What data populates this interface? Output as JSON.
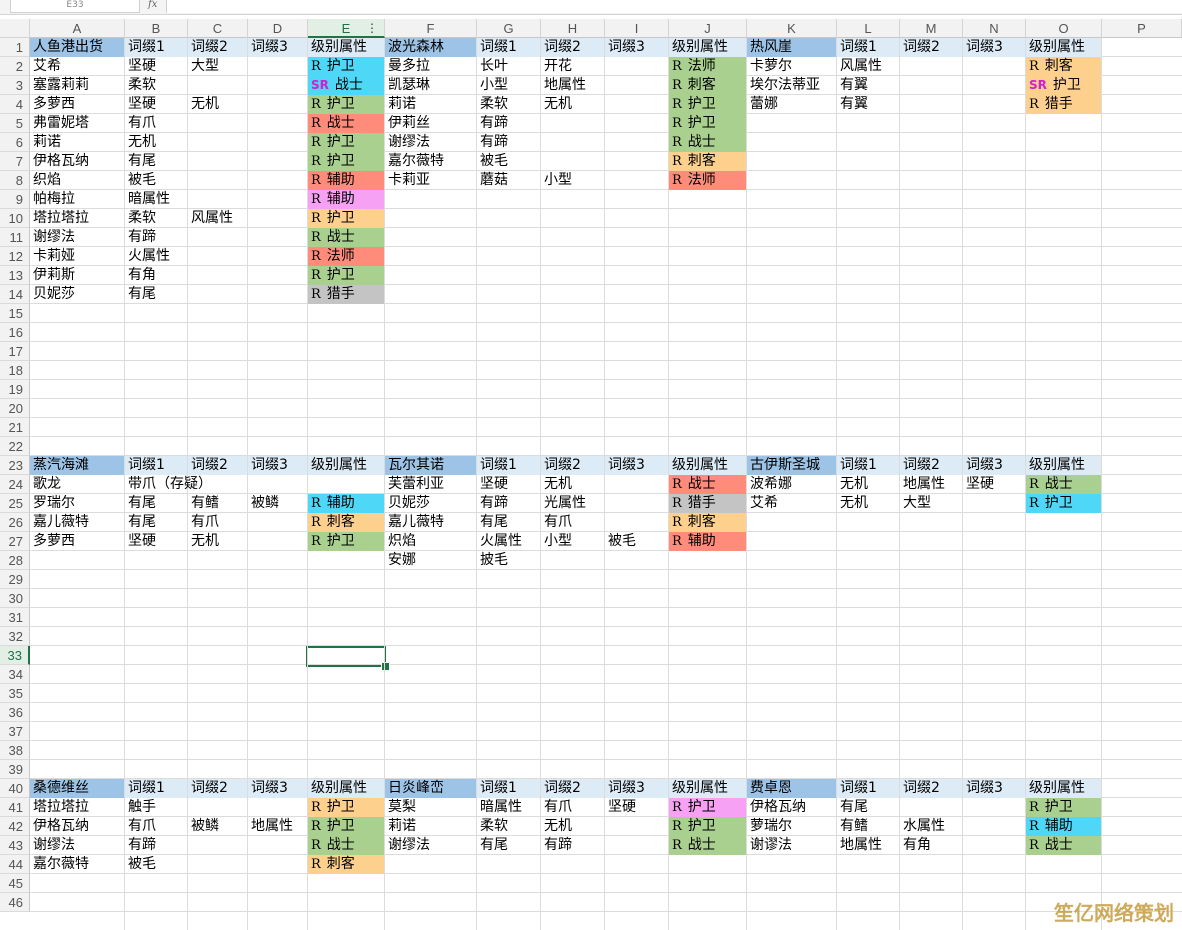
{
  "formula_bar": {
    "cell_ref": "E33",
    "fx_label": "fx"
  },
  "columns": [
    "A",
    "B",
    "C",
    "D",
    "E",
    "F",
    "G",
    "H",
    "I",
    "J",
    "K",
    "L",
    "M",
    "N",
    "O",
    "P"
  ],
  "selected_column": "E",
  "selected_row": "33",
  "rows": [
    "1",
    "2",
    "3",
    "4",
    "5",
    "6",
    "7",
    "8",
    "9",
    "10",
    "11",
    "12",
    "13",
    "14",
    "15",
    "16",
    "17",
    "18",
    "19",
    "20",
    "21",
    "22",
    "23",
    "24",
    "25",
    "26",
    "27",
    "28",
    "29",
    "30",
    "31",
    "32",
    "33",
    "34",
    "35",
    "36",
    "37",
    "38",
    "39",
    "40",
    "41",
    "42",
    "43",
    "44",
    "45",
    "46"
  ],
  "colors": {
    "header_blue": "#9dc3e6",
    "header_lightblue": "#ddebf7",
    "cyan": "#4fd7f7",
    "green": "#a9d08e",
    "red": "#ff8c7a",
    "pink": "#f7a1f4",
    "orange": "#fdd08e",
    "gray": "#c4c4c4",
    "selection_green": "#217346"
  },
  "cells": [
    {
      "c": "A",
      "r": 1,
      "t": "人鱼港出货",
      "bg": "header_blue"
    },
    {
      "c": "B",
      "r": 1,
      "t": "词缀1",
      "bg": "header_lightblue"
    },
    {
      "c": "C",
      "r": 1,
      "t": "词缀2",
      "bg": "header_lightblue"
    },
    {
      "c": "D",
      "r": 1,
      "t": "词缀3",
      "bg": "header_lightblue"
    },
    {
      "c": "E",
      "r": 1,
      "t": "级别属性",
      "bg": "header_lightblue"
    },
    {
      "c": "F",
      "r": 1,
      "t": "波光森林",
      "bg": "header_blue"
    },
    {
      "c": "G",
      "r": 1,
      "t": "词缀1",
      "bg": "header_lightblue"
    },
    {
      "c": "H",
      "r": 1,
      "t": "词缀2",
      "bg": "header_lightblue"
    },
    {
      "c": "I",
      "r": 1,
      "t": "词缀3",
      "bg": "header_lightblue"
    },
    {
      "c": "J",
      "r": 1,
      "t": "级别属性",
      "bg": "header_lightblue"
    },
    {
      "c": "K",
      "r": 1,
      "t": "热风崖",
      "bg": "header_blue"
    },
    {
      "c": "L",
      "r": 1,
      "t": "词缀1",
      "bg": "header_lightblue"
    },
    {
      "c": "M",
      "r": 1,
      "t": "词缀2",
      "bg": "header_lightblue"
    },
    {
      "c": "N",
      "r": 1,
      "t": "词缀3",
      "bg": "header_lightblue"
    },
    {
      "c": "O",
      "r": 1,
      "t": "级别属性",
      "bg": "header_lightblue"
    },
    {
      "c": "A",
      "r": 2,
      "t": "艾希"
    },
    {
      "c": "B",
      "r": 2,
      "t": "坚硬"
    },
    {
      "c": "C",
      "r": 2,
      "t": "大型"
    },
    {
      "c": "E",
      "r": 2,
      "rk": "R",
      "t": "护卫",
      "bg": "cyan"
    },
    {
      "c": "F",
      "r": 2,
      "t": "曼多拉"
    },
    {
      "c": "G",
      "r": 2,
      "t": "长叶"
    },
    {
      "c": "H",
      "r": 2,
      "t": "开花"
    },
    {
      "c": "J",
      "r": 2,
      "rk": "R",
      "t": "法师",
      "bg": "green"
    },
    {
      "c": "K",
      "r": 2,
      "t": "卡萝尔"
    },
    {
      "c": "L",
      "r": 2,
      "t": "风属性"
    },
    {
      "c": "O",
      "r": 2,
      "rk": "R",
      "t": "刺客",
      "bg": "orange"
    },
    {
      "c": "A",
      "r": 3,
      "t": "塞露莉莉"
    },
    {
      "c": "B",
      "r": 3,
      "t": "柔软"
    },
    {
      "c": "E",
      "r": 3,
      "rk": "SR",
      "t": "战士",
      "bg": "cyan"
    },
    {
      "c": "F",
      "r": 3,
      "t": "凯瑟琳"
    },
    {
      "c": "G",
      "r": 3,
      "t": "小型"
    },
    {
      "c": "H",
      "r": 3,
      "t": "地属性"
    },
    {
      "c": "J",
      "r": 3,
      "rk": "R",
      "t": "刺客",
      "bg": "green"
    },
    {
      "c": "K",
      "r": 3,
      "t": "埃尔法蒂亚"
    },
    {
      "c": "L",
      "r": 3,
      "t": "有翼"
    },
    {
      "c": "O",
      "r": 3,
      "rk": "SR",
      "t": "护卫",
      "bg": "orange"
    },
    {
      "c": "A",
      "r": 4,
      "t": "多萝西"
    },
    {
      "c": "B",
      "r": 4,
      "t": "坚硬"
    },
    {
      "c": "C",
      "r": 4,
      "t": "无机"
    },
    {
      "c": "E",
      "r": 4,
      "rk": "R",
      "t": "护卫",
      "bg": "green"
    },
    {
      "c": "F",
      "r": 4,
      "t": "莉诺"
    },
    {
      "c": "G",
      "r": 4,
      "t": "柔软"
    },
    {
      "c": "H",
      "r": 4,
      "t": "无机"
    },
    {
      "c": "J",
      "r": 4,
      "rk": "R",
      "t": "护卫",
      "bg": "green"
    },
    {
      "c": "K",
      "r": 4,
      "t": "蕾娜"
    },
    {
      "c": "L",
      "r": 4,
      "t": "有翼"
    },
    {
      "c": "O",
      "r": 4,
      "rk": "R",
      "t": "猎手",
      "bg": "orange"
    },
    {
      "c": "A",
      "r": 5,
      "t": "弗雷妮塔"
    },
    {
      "c": "B",
      "r": 5,
      "t": "有爪"
    },
    {
      "c": "E",
      "r": 5,
      "rk": "R",
      "t": "战士",
      "bg": "red"
    },
    {
      "c": "F",
      "r": 5,
      "t": "伊莉丝"
    },
    {
      "c": "G",
      "r": 5,
      "t": "有蹄"
    },
    {
      "c": "J",
      "r": 5,
      "rk": "R",
      "t": "护卫",
      "bg": "green"
    },
    {
      "c": "A",
      "r": 6,
      "t": "莉诺"
    },
    {
      "c": "B",
      "r": 6,
      "t": "无机"
    },
    {
      "c": "E",
      "r": 6,
      "rk": "R",
      "t": "护卫",
      "bg": "green"
    },
    {
      "c": "F",
      "r": 6,
      "t": "谢缪法"
    },
    {
      "c": "G",
      "r": 6,
      "t": "有蹄"
    },
    {
      "c": "J",
      "r": 6,
      "rk": "R",
      "t": "战士",
      "bg": "green"
    },
    {
      "c": "A",
      "r": 7,
      "t": "伊格瓦纳"
    },
    {
      "c": "B",
      "r": 7,
      "t": "有尾"
    },
    {
      "c": "E",
      "r": 7,
      "rk": "R",
      "t": "护卫",
      "bg": "green"
    },
    {
      "c": "F",
      "r": 7,
      "t": "嘉尔薇特"
    },
    {
      "c": "G",
      "r": 7,
      "t": "被毛"
    },
    {
      "c": "J",
      "r": 7,
      "rk": "R",
      "t": "刺客",
      "bg": "orange"
    },
    {
      "c": "A",
      "r": 8,
      "t": "织焰"
    },
    {
      "c": "B",
      "r": 8,
      "t": "被毛"
    },
    {
      "c": "E",
      "r": 8,
      "rk": "R",
      "t": "辅助",
      "bg": "red"
    },
    {
      "c": "F",
      "r": 8,
      "t": "卡莉亚"
    },
    {
      "c": "G",
      "r": 8,
      "t": "蘑菇"
    },
    {
      "c": "H",
      "r": 8,
      "t": "小型"
    },
    {
      "c": "J",
      "r": 8,
      "rk": "R",
      "t": "法师",
      "bg": "red"
    },
    {
      "c": "A",
      "r": 9,
      "t": "帕梅拉"
    },
    {
      "c": "B",
      "r": 9,
      "t": "暗属性"
    },
    {
      "c": "E",
      "r": 9,
      "rk": "R",
      "t": "辅助",
      "bg": "pink"
    },
    {
      "c": "A",
      "r": 10,
      "t": "塔拉塔拉"
    },
    {
      "c": "B",
      "r": 10,
      "t": "  柔软"
    },
    {
      "c": "C",
      "r": 10,
      "t": "风属性"
    },
    {
      "c": "E",
      "r": 10,
      "rk": "R",
      "t": "护卫",
      "bg": "orange"
    },
    {
      "c": "A",
      "r": 11,
      "t": "谢缪法"
    },
    {
      "c": "B",
      "r": 11,
      "t": "有蹄"
    },
    {
      "c": "E",
      "r": 11,
      "rk": "R",
      "t": "战士",
      "bg": "green"
    },
    {
      "c": "A",
      "r": 12,
      "t": "卡莉娅"
    },
    {
      "c": "B",
      "r": 12,
      "t": "火属性"
    },
    {
      "c": "E",
      "r": 12,
      "rk": "R",
      "t": "法师",
      "bg": "red"
    },
    {
      "c": "A",
      "r": 13,
      "t": "伊莉斯"
    },
    {
      "c": "B",
      "r": 13,
      "t": "有角"
    },
    {
      "c": "E",
      "r": 13,
      "rk": "R",
      "t": "护卫",
      "bg": "green"
    },
    {
      "c": "A",
      "r": 14,
      "t": "贝妮莎"
    },
    {
      "c": "B",
      "r": 14,
      "t": "有尾"
    },
    {
      "c": "E",
      "r": 14,
      "rk": "R",
      "t": "猎手",
      "bg": "gray"
    },
    {
      "c": "A",
      "r": 23,
      "t": "蒸汽海滩",
      "bg": "header_blue"
    },
    {
      "c": "B",
      "r": 23,
      "t": "词缀1",
      "bg": "header_lightblue"
    },
    {
      "c": "C",
      "r": 23,
      "t": "词缀2",
      "bg": "header_lightblue"
    },
    {
      "c": "D",
      "r": 23,
      "t": "词缀3",
      "bg": "header_lightblue"
    },
    {
      "c": "E",
      "r": 23,
      "t": "级别属性",
      "bg": "header_lightblue"
    },
    {
      "c": "F",
      "r": 23,
      "t": "瓦尔其诺",
      "bg": "header_blue"
    },
    {
      "c": "G",
      "r": 23,
      "t": "词缀1",
      "bg": "header_lightblue"
    },
    {
      "c": "H",
      "r": 23,
      "t": "词缀2",
      "bg": "header_lightblue"
    },
    {
      "c": "I",
      "r": 23,
      "t": "词缀3",
      "bg": "header_lightblue"
    },
    {
      "c": "J",
      "r": 23,
      "t": "级别属性",
      "bg": "header_lightblue"
    },
    {
      "c": "K",
      "r": 23,
      "t": "古伊斯圣城",
      "bg": "header_blue"
    },
    {
      "c": "L",
      "r": 23,
      "t": "词缀1",
      "bg": "header_lightblue"
    },
    {
      "c": "M",
      "r": 23,
      "t": "词缀2",
      "bg": "header_lightblue"
    },
    {
      "c": "N",
      "r": 23,
      "t": "词缀3",
      "bg": "header_lightblue"
    },
    {
      "c": "O",
      "r": 23,
      "t": "级别属性",
      "bg": "header_lightblue"
    },
    {
      "c": "A",
      "r": 24,
      "t": "歌龙"
    },
    {
      "c": "B",
      "r": 24,
      "t": "带爪（存疑）"
    },
    {
      "c": "F",
      "r": 24,
      "t": "芙蕾利亚"
    },
    {
      "c": "G",
      "r": 24,
      "t": "坚硬"
    },
    {
      "c": "H",
      "r": 24,
      "t": "无机"
    },
    {
      "c": "J",
      "r": 24,
      "rk": "R",
      "t": "战士",
      "bg": "red"
    },
    {
      "c": "K",
      "r": 24,
      "t": "波希娜"
    },
    {
      "c": "L",
      "r": 24,
      "t": "无机"
    },
    {
      "c": "M",
      "r": 24,
      "t": "地属性"
    },
    {
      "c": "N",
      "r": 24,
      "t": "坚硬"
    },
    {
      "c": "O",
      "r": 24,
      "rk": "R",
      "t": "战士",
      "bg": "green"
    },
    {
      "c": "A",
      "r": 25,
      "t": "罗瑞尔"
    },
    {
      "c": "B",
      "r": 25,
      "t": "有尾"
    },
    {
      "c": "C",
      "r": 25,
      "t": "有鳍"
    },
    {
      "c": "D",
      "r": 25,
      "t": "被鳞"
    },
    {
      "c": "E",
      "r": 25,
      "rk": "R",
      "t": "辅助",
      "bg": "cyan"
    },
    {
      "c": "F",
      "r": 25,
      "t": "贝妮莎"
    },
    {
      "c": "G",
      "r": 25,
      "t": "有蹄"
    },
    {
      "c": "H",
      "r": 25,
      "t": "光属性"
    },
    {
      "c": "J",
      "r": 25,
      "rk": "R",
      "t": "猎手",
      "bg": "gray"
    },
    {
      "c": "K",
      "r": 25,
      "t": "艾希"
    },
    {
      "c": "L",
      "r": 25,
      "t": "无机"
    },
    {
      "c": "M",
      "r": 25,
      "t": "大型"
    },
    {
      "c": "O",
      "r": 25,
      "rk": "R",
      "t": "护卫",
      "bg": "cyan"
    },
    {
      "c": "A",
      "r": 26,
      "t": "嘉儿薇特"
    },
    {
      "c": "B",
      "r": 26,
      "t": "有尾"
    },
    {
      "c": "C",
      "r": 26,
      "t": "有爪"
    },
    {
      "c": "E",
      "r": 26,
      "rk": "R",
      "t": "刺客",
      "bg": "orange"
    },
    {
      "c": "F",
      "r": 26,
      "t": "嘉儿薇特"
    },
    {
      "c": "G",
      "r": 26,
      "t": "有尾"
    },
    {
      "c": "H",
      "r": 26,
      "t": "有爪"
    },
    {
      "c": "J",
      "r": 26,
      "rk": "R",
      "t": "刺客",
      "bg": "orange"
    },
    {
      "c": "A",
      "r": 27,
      "t": "多萝西"
    },
    {
      "c": "B",
      "r": 27,
      "t": "坚硬"
    },
    {
      "c": "C",
      "r": 27,
      "t": "无机"
    },
    {
      "c": "E",
      "r": 27,
      "rk": "R",
      "t": "护卫",
      "bg": "green"
    },
    {
      "c": "F",
      "r": 27,
      "t": "炽焰"
    },
    {
      "c": "G",
      "r": 27,
      "t": "火属性"
    },
    {
      "c": "H",
      "r": 27,
      "t": "小型"
    },
    {
      "c": "I",
      "r": 27,
      "t": "被毛"
    },
    {
      "c": "J",
      "r": 27,
      "rk": "R",
      "t": "辅助",
      "bg": "red"
    },
    {
      "c": "F",
      "r": 28,
      "t": "安娜"
    },
    {
      "c": "G",
      "r": 28,
      "t": "披毛"
    },
    {
      "c": "A",
      "r": 40,
      "t": "桑德维丝",
      "bg": "header_blue"
    },
    {
      "c": "B",
      "r": 40,
      "t": "词缀1",
      "bg": "header_lightblue"
    },
    {
      "c": "C",
      "r": 40,
      "t": "词缀2",
      "bg": "header_lightblue"
    },
    {
      "c": "D",
      "r": 40,
      "t": "词缀3",
      "bg": "header_lightblue"
    },
    {
      "c": "E",
      "r": 40,
      "t": "级别属性",
      "bg": "header_lightblue"
    },
    {
      "c": "F",
      "r": 40,
      "t": "日炎峰峦",
      "bg": "header_blue"
    },
    {
      "c": "G",
      "r": 40,
      "t": "词缀1",
      "bg": "header_lightblue"
    },
    {
      "c": "H",
      "r": 40,
      "t": "词缀2",
      "bg": "header_lightblue"
    },
    {
      "c": "I",
      "r": 40,
      "t": "词缀3",
      "bg": "header_lightblue"
    },
    {
      "c": "J",
      "r": 40,
      "t": "级别属性",
      "bg": "header_lightblue"
    },
    {
      "c": "K",
      "r": 40,
      "t": "费卓恩",
      "bg": "header_blue"
    },
    {
      "c": "L",
      "r": 40,
      "t": "词缀1",
      "bg": "header_lightblue"
    },
    {
      "c": "M",
      "r": 40,
      "t": "词缀2",
      "bg": "header_lightblue"
    },
    {
      "c": "N",
      "r": 40,
      "t": "词缀3",
      "bg": "header_lightblue"
    },
    {
      "c": "O",
      "r": 40,
      "t": "级别属性",
      "bg": "header_lightblue"
    },
    {
      "c": "A",
      "r": 41,
      "t": "塔拉塔拉"
    },
    {
      "c": "B",
      "r": 41,
      "t": "触手"
    },
    {
      "c": "E",
      "r": 41,
      "rk": "R",
      "t": "护卫",
      "bg": "orange"
    },
    {
      "c": "F",
      "r": 41,
      "t": "莫梨"
    },
    {
      "c": "G",
      "r": 41,
      "t": "暗属性"
    },
    {
      "c": "H",
      "r": 41,
      "t": "有爪"
    },
    {
      "c": "I",
      "r": 41,
      "t": "坚硬"
    },
    {
      "c": "J",
      "r": 41,
      "rk": "R",
      "t": "护卫",
      "bg": "pink"
    },
    {
      "c": "K",
      "r": 41,
      "t": "伊格瓦纳"
    },
    {
      "c": "L",
      "r": 41,
      "t": "有尾"
    },
    {
      "c": "O",
      "r": 41,
      "rk": "R",
      "t": "护卫",
      "bg": "green"
    },
    {
      "c": "A",
      "r": 42,
      "t": "伊格瓦纳"
    },
    {
      "c": "B",
      "r": 42,
      "t": "有爪"
    },
    {
      "c": "C",
      "r": 42,
      "t": "被鳞"
    },
    {
      "c": "D",
      "r": 42,
      "t": "地属性"
    },
    {
      "c": "E",
      "r": 42,
      "rk": "R",
      "t": "护卫",
      "bg": "green"
    },
    {
      "c": "F",
      "r": 42,
      "t": "莉诺"
    },
    {
      "c": "G",
      "r": 42,
      "t": "柔软"
    },
    {
      "c": "H",
      "r": 42,
      "t": "无机"
    },
    {
      "c": "J",
      "r": 42,
      "rk": "R",
      "t": "护卫",
      "bg": "green"
    },
    {
      "c": "K",
      "r": 42,
      "t": "萝瑞尔"
    },
    {
      "c": "L",
      "r": 42,
      "t": "有鳍"
    },
    {
      "c": "M",
      "r": 42,
      "t": "水属性"
    },
    {
      "c": "O",
      "r": 42,
      "rk": "R",
      "t": "辅助",
      "bg": "cyan"
    },
    {
      "c": "A",
      "r": 43,
      "t": "谢缪法"
    },
    {
      "c": "B",
      "r": 43,
      "t": "有蹄"
    },
    {
      "c": "E",
      "r": 43,
      "rk": "R",
      "t": "战士",
      "bg": "green"
    },
    {
      "c": "F",
      "r": 43,
      "t": "谢缪法"
    },
    {
      "c": "G",
      "r": 43,
      "t": "有尾"
    },
    {
      "c": "H",
      "r": 43,
      "t": "有蹄"
    },
    {
      "c": "J",
      "r": 43,
      "rk": "R",
      "t": "战士",
      "bg": "green"
    },
    {
      "c": "K",
      "r": 43,
      "t": "谢谬法"
    },
    {
      "c": "L",
      "r": 43,
      "t": "地属性"
    },
    {
      "c": "M",
      "r": 43,
      "t": "有角"
    },
    {
      "c": "O",
      "r": 43,
      "rk": "R",
      "t": "战士",
      "bg": "green"
    },
    {
      "c": "A",
      "r": 44,
      "t": "嘉尔薇特"
    },
    {
      "c": "B",
      "r": 44,
      "t": "被毛"
    },
    {
      "c": "E",
      "r": 44,
      "rk": "R",
      "t": "刺客",
      "bg": "orange"
    }
  ],
  "watermark": "笙亿网络策划"
}
